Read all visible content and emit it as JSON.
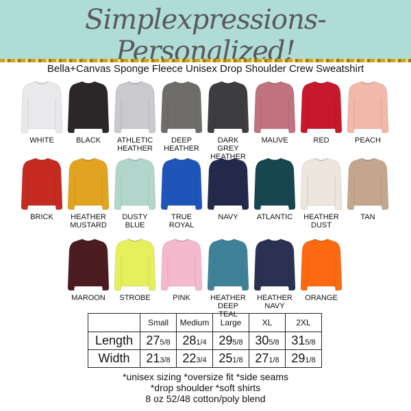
{
  "header": {
    "brand": "Simplexpressions- Personalized!",
    "subtitle": "Bella+Canvas Sponge Fleece Unisex Drop Shoulder Crew Sweatshirt"
  },
  "colors": [
    {
      "name": "WHITE",
      "hex": "#e9e9ec"
    },
    {
      "name": "BLACK",
      "hex": "#2b2628"
    },
    {
      "name": "ATHLETIC HEATHER",
      "hex": "#c9c9ce"
    },
    {
      "name": "DEEP HEATHER",
      "hex": "#6f6d6a"
    },
    {
      "name": "DARK GREY HEATHER",
      "hex": "#3d3c3e"
    },
    {
      "name": "MAUVE",
      "hex": "#c0727f"
    },
    {
      "name": "RED",
      "hex": "#c8182b"
    },
    {
      "name": "PEACH",
      "hex": "#f2b8aa"
    },
    {
      "name": "BRICK",
      "hex": "#c52b20"
    },
    {
      "name": "HEATHER MUSTARD",
      "hex": "#e2a420"
    },
    {
      "name": "DUSTY BLUE",
      "hex": "#b2d6cb"
    },
    {
      "name": "TRUE ROYAL",
      "hex": "#1f55b9"
    },
    {
      "name": "NAVY",
      "hex": "#22294a"
    },
    {
      "name": "ATLANTIC",
      "hex": "#174650"
    },
    {
      "name": "HEATHER DUST",
      "hex": "#ece6dd"
    },
    {
      "name": "TAN",
      "hex": "#c4a68e"
    },
    {
      "name": "MAROON",
      "hex": "#4a1c20"
    },
    {
      "name": "STROBE",
      "hex": "#e6ef5c"
    },
    {
      "name": "PINK",
      "hex": "#f4b9cd"
    },
    {
      "name": "HEATHER DEEP TEAL",
      "hex": "#3f8298"
    },
    {
      "name": "HEATHER NAVY",
      "hex": "#2b3150"
    },
    {
      "name": "ORANGE",
      "hex": "#fb6a10"
    }
  ],
  "size_table": {
    "columns": [
      "",
      "Small",
      "Medium",
      "Large",
      "XL",
      "2XL"
    ],
    "rows": [
      {
        "label": "Length",
        "values": [
          {
            "whole": "27",
            "frac": "5/8"
          },
          {
            "whole": "28",
            "frac": "1/4"
          },
          {
            "whole": "29",
            "frac": "5/8"
          },
          {
            "whole": "30",
            "frac": "5/8"
          },
          {
            "whole": "31",
            "frac": "5/8"
          }
        ]
      },
      {
        "label": "Width",
        "values": [
          {
            "whole": "21",
            "frac": "3/8"
          },
          {
            "whole": "22",
            "frac": "3/4"
          },
          {
            "whole": "25",
            "frac": "1/8"
          },
          {
            "whole": "27",
            "frac": "1/8"
          },
          {
            "whole": "29",
            "frac": "1/8"
          }
        ]
      }
    ]
  },
  "footer": [
    "*unisex sizing *oversize fit *side seams",
    "*drop shoulder *soft shirts",
    "8 oz 52/48 cotton/poly blend"
  ]
}
